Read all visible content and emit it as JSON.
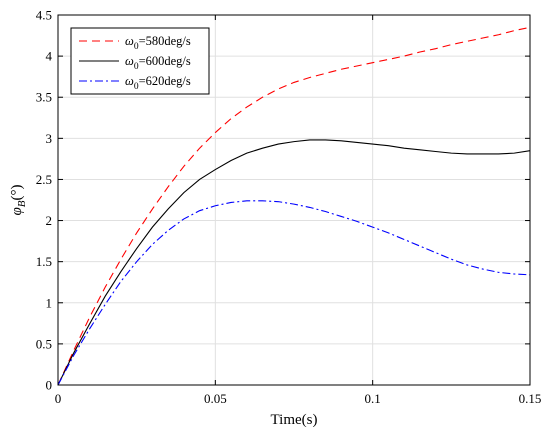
{
  "chart_data": {
    "type": "line",
    "xlabel": "Time(s)",
    "ylabel_main": "φ",
    "ylabel_sub": "B",
    "ylabel_unit": "(°)",
    "xlim": [
      0,
      0.15
    ],
    "ylim": [
      0,
      4.5
    ],
    "x_ticks": [
      0,
      0.05,
      0.1,
      0.15
    ],
    "x_tick_labels": [
      "0",
      "0.05",
      "0.1",
      "0.15"
    ],
    "y_ticks": [
      0,
      0.5,
      1,
      1.5,
      2,
      2.5,
      3,
      3.5,
      4,
      4.5
    ],
    "y_tick_labels": [
      "0",
      "0.5",
      "1",
      "1.5",
      "2",
      "2.5",
      "3",
      "3.5",
      "4",
      "4.5"
    ],
    "grid": true,
    "legend_position": "top-left",
    "series": [
      {
        "name": "ω0=580deg/s",
        "legend_symbol": "ω",
        "legend_sub": "0",
        "legend_rest": "=580deg/s",
        "color": "#ff0000",
        "dash": "8,5",
        "x": [
          0,
          0.005,
          0.01,
          0.015,
          0.02,
          0.025,
          0.03,
          0.035,
          0.04,
          0.045,
          0.05,
          0.055,
          0.06,
          0.065,
          0.07,
          0.075,
          0.08,
          0.085,
          0.09,
          0.095,
          0.1,
          0.105,
          0.11,
          0.115,
          0.12,
          0.125,
          0.13,
          0.135,
          0.14,
          0.145,
          0.15
        ],
        "y": [
          0,
          0.42,
          0.82,
          1.19,
          1.53,
          1.85,
          2.14,
          2.41,
          2.66,
          2.88,
          3.07,
          3.24,
          3.38,
          3.5,
          3.6,
          3.68,
          3.74,
          3.79,
          3.84,
          3.88,
          3.92,
          3.96,
          4.0,
          4.05,
          4.09,
          4.14,
          4.18,
          4.22,
          4.26,
          4.31,
          4.35
        ]
      },
      {
        "name": "ω0=600deg/s",
        "legend_symbol": "ω",
        "legend_sub": "0",
        "legend_rest": "=600deg/s",
        "color": "#000000",
        "dash": "",
        "x": [
          0,
          0.005,
          0.01,
          0.015,
          0.02,
          0.025,
          0.03,
          0.035,
          0.04,
          0.045,
          0.05,
          0.055,
          0.06,
          0.065,
          0.07,
          0.075,
          0.08,
          0.085,
          0.09,
          0.095,
          0.1,
          0.105,
          0.11,
          0.115,
          0.12,
          0.125,
          0.13,
          0.135,
          0.14,
          0.145,
          0.15
        ],
        "y": [
          0,
          0.39,
          0.74,
          1.08,
          1.38,
          1.66,
          1.92,
          2.14,
          2.34,
          2.5,
          2.62,
          2.73,
          2.82,
          2.88,
          2.93,
          2.96,
          2.98,
          2.98,
          2.97,
          2.95,
          2.93,
          2.91,
          2.88,
          2.86,
          2.84,
          2.82,
          2.81,
          2.81,
          2.81,
          2.82,
          2.85
        ]
      },
      {
        "name": "ω0=620deg/s",
        "legend_symbol": "ω",
        "legend_sub": "0",
        "legend_rest": "=620deg/s",
        "color": "#0000ff",
        "dash": "8,3,2,3",
        "x": [
          0,
          0.005,
          0.01,
          0.015,
          0.02,
          0.025,
          0.03,
          0.035,
          0.04,
          0.045,
          0.05,
          0.055,
          0.06,
          0.065,
          0.07,
          0.075,
          0.08,
          0.085,
          0.09,
          0.095,
          0.1,
          0.105,
          0.11,
          0.115,
          0.12,
          0.125,
          0.13,
          0.135,
          0.14,
          0.145,
          0.15
        ],
        "y": [
          0,
          0.36,
          0.68,
          0.98,
          1.26,
          1.5,
          1.71,
          1.88,
          2.02,
          2.12,
          2.18,
          2.22,
          2.24,
          2.24,
          2.23,
          2.2,
          2.16,
          2.11,
          2.05,
          1.99,
          1.92,
          1.85,
          1.77,
          1.69,
          1.61,
          1.53,
          1.46,
          1.41,
          1.37,
          1.35,
          1.34
        ]
      }
    ]
  }
}
